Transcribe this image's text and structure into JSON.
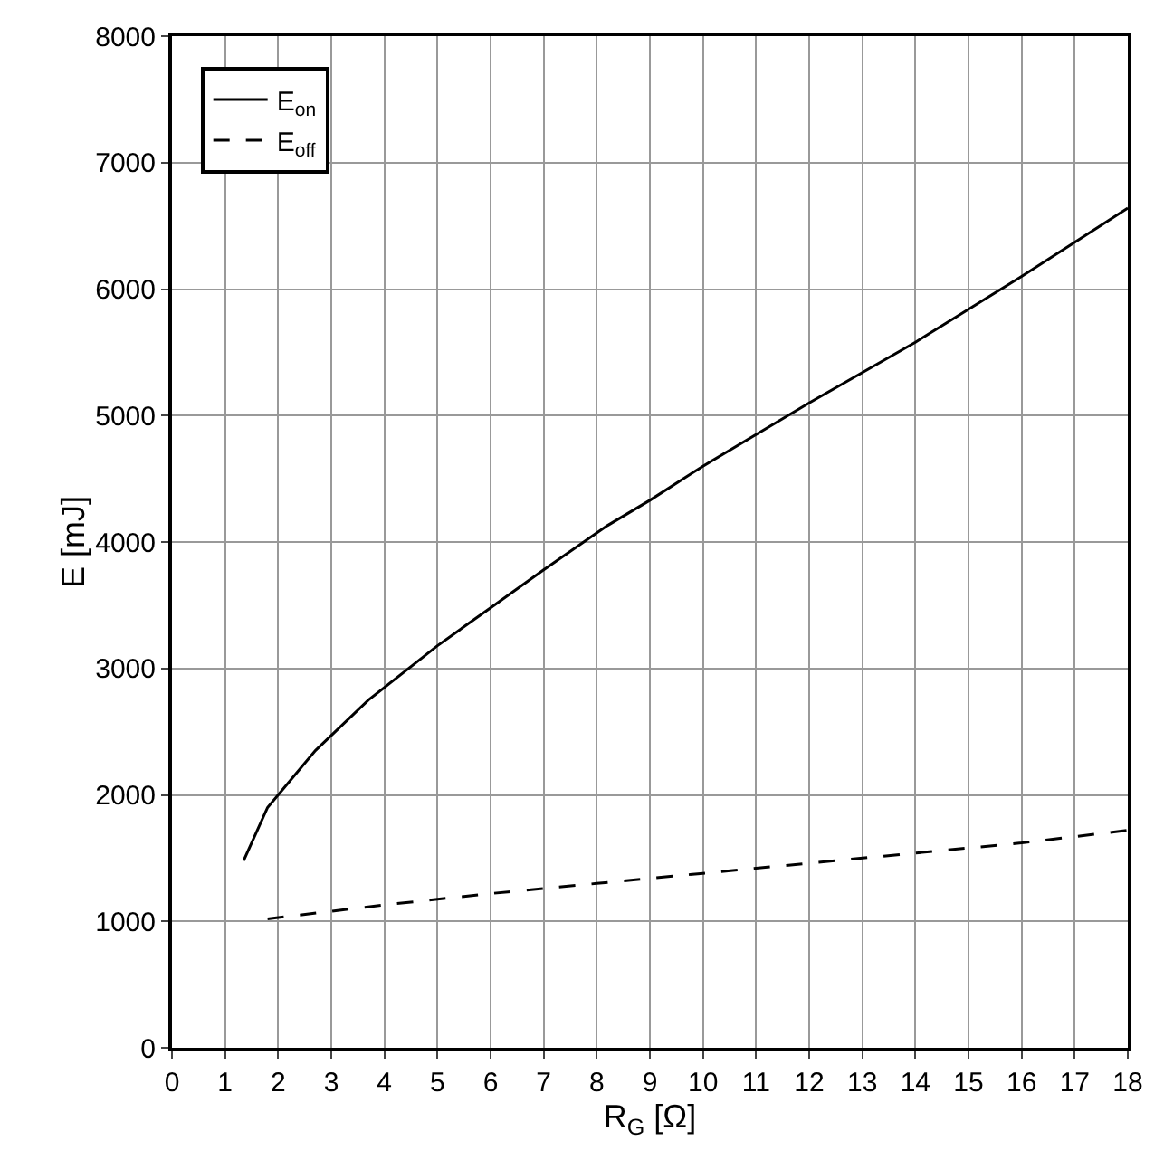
{
  "chart_data": {
    "type": "line",
    "xlabel": "R$_{G}$ [Ω]",
    "ylabel": "E [mJ]",
    "xlim": [
      0,
      18
    ],
    "xticks": [
      0,
      1,
      2,
      3,
      4,
      5,
      6,
      7,
      8,
      9,
      10,
      11,
      12,
      13,
      14,
      15,
      16,
      17,
      18
    ],
    "ylim": [
      0,
      8000
    ],
    "yticks": [
      0,
      1000,
      2000,
      3000,
      4000,
      5000,
      6000,
      7000,
      8000
    ],
    "grid": true,
    "legend": "top left",
    "series": [
      {
        "name": "E$_{on}$",
        "color": "#000000",
        "line_style": "solid",
        "x": [
          1.35,
          1.8,
          2.7,
          3.7,
          5,
          6,
          7,
          8.2,
          9,
          10,
          12,
          14,
          16,
          18
        ],
        "values": [
          1480,
          1900,
          2350,
          2750,
          3180,
          3480,
          3780,
          4130,
          4330,
          4600,
          5100,
          5580,
          6100,
          6640
        ]
      },
      {
        "name": "E$_{off}$",
        "color": "#000000",
        "line_style": "dashed",
        "x": [
          1.8,
          3,
          4,
          6,
          8,
          10,
          12,
          14,
          16,
          18
        ],
        "values": [
          1020,
          1080,
          1130,
          1220,
          1300,
          1380,
          1460,
          1540,
          1620,
          1720
        ]
      }
    ]
  }
}
